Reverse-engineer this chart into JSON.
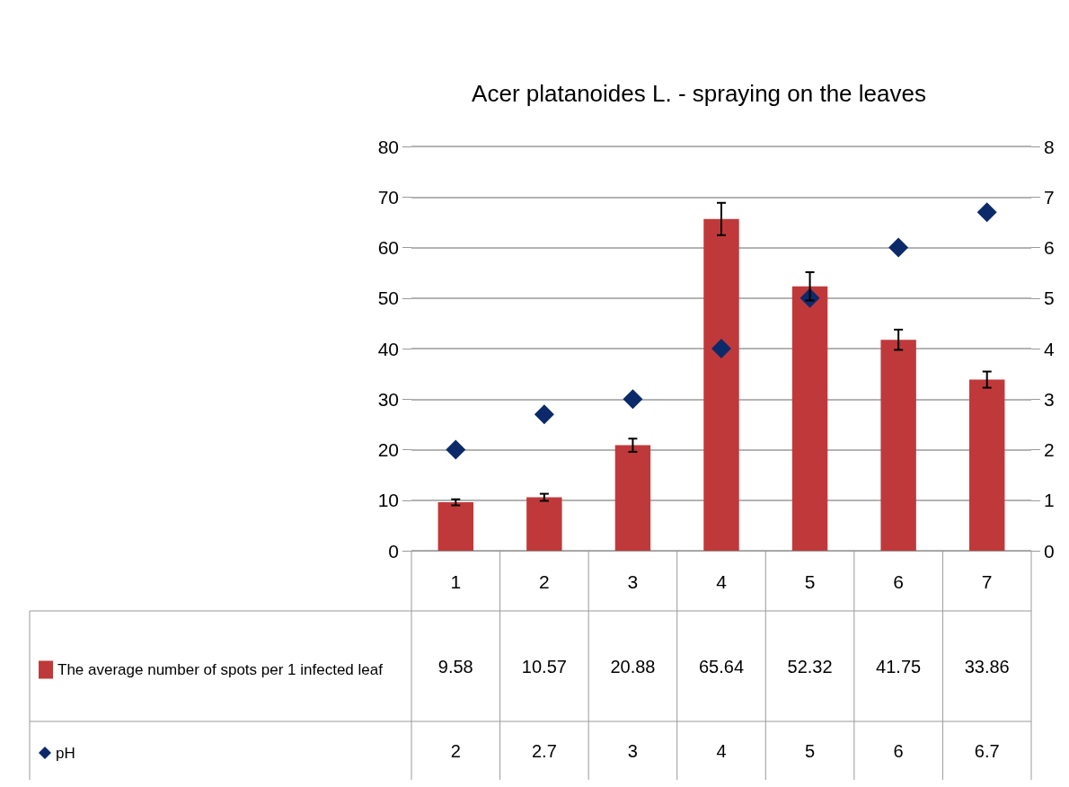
{
  "chart_data": {
    "type": "bar",
    "title": "Acer platanoides L. - spraying on the leaves",
    "categories": [
      "1",
      "2",
      "3",
      "4",
      "5",
      "6",
      "7"
    ],
    "series": [
      {
        "name": "The average number of spots per 1 infected leaf",
        "type": "bar",
        "color": "#c0393a",
        "values": [
          9.58,
          10.57,
          20.88,
          65.64,
          52.32,
          41.75,
          33.86
        ],
        "errors": [
          0.6,
          0.7,
          1.3,
          3.2,
          2.8,
          2.0,
          1.6
        ]
      },
      {
        "name": "pH",
        "type": "scatter",
        "axis": "y2",
        "color": "#0c2a6a",
        "marker": "diamond",
        "values": [
          2,
          2.7,
          3,
          4,
          5,
          6,
          6.7
        ]
      }
    ],
    "ylim": [
      0,
      80
    ],
    "yticks": [
      0,
      10,
      20,
      30,
      40,
      50,
      60,
      70,
      80
    ],
    "y2lim": [
      0,
      8
    ],
    "y2ticks": [
      0,
      1,
      2,
      3,
      4,
      5,
      6,
      7,
      8
    ],
    "grid": "y",
    "legend": "bottom",
    "data_labels": true
  }
}
